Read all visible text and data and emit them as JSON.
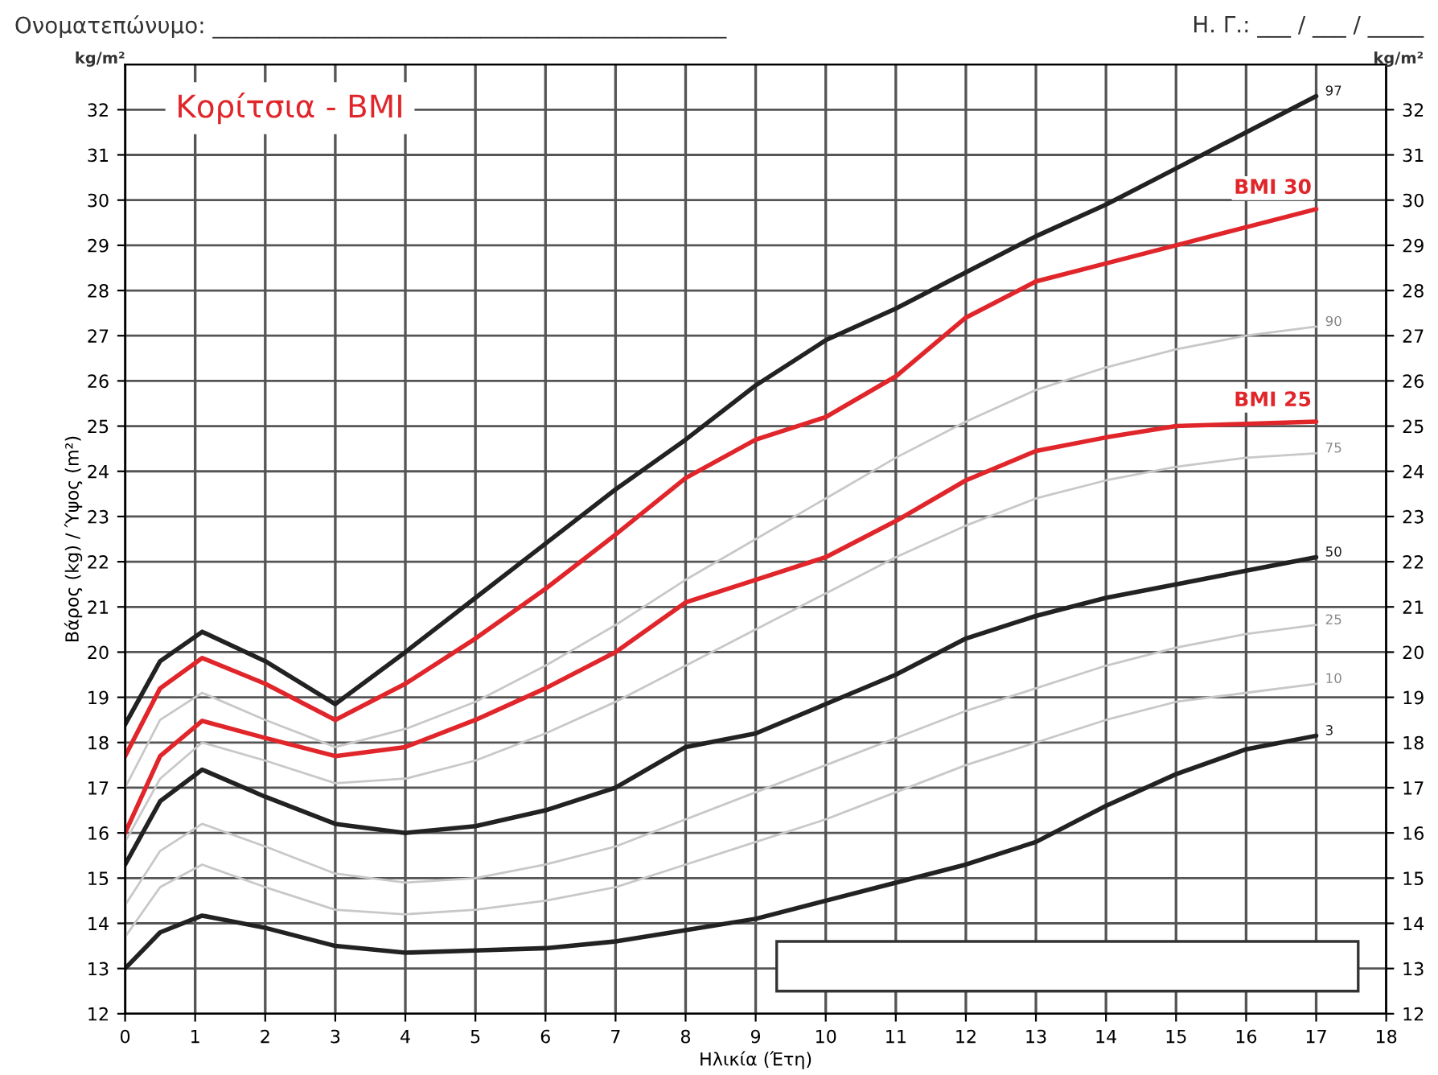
{
  "chart_data": {
    "type": "line",
    "title": "Κορίτσια - BMI",
    "xlabel": "Ηλικία (Έτη)",
    "ylabel": "Βάρος (kg) / Ύψος (m²)",
    "annotations": [
      "Ονοματεπώνυμο: ______________________________________________",
      "Η. Γ.: ___ / ___ / _____",
      "kg/m²",
      "kg/m²"
    ],
    "x": [
      0,
      0.5,
      1.1,
      2,
      3,
      4,
      5,
      6,
      7,
      8,
      9,
      10,
      11,
      12,
      13,
      14,
      15,
      16,
      17
    ],
    "series": [
      {
        "name": "97",
        "color": "#222222",
        "values": [
          18.4,
          19.8,
          20.45,
          19.8,
          18.85,
          20.0,
          21.2,
          22.4,
          23.6,
          24.7,
          25.9,
          26.9,
          27.6,
          28.4,
          29.2,
          29.9,
          30.7,
          31.5,
          32.3
        ]
      },
      {
        "name": "BMI 30",
        "color": "#e0262b",
        "values": [
          17.7,
          19.2,
          19.87,
          19.3,
          18.5,
          19.3,
          20.3,
          21.4,
          22.6,
          23.85,
          24.7,
          25.2,
          26.1,
          27.4,
          28.2,
          28.6,
          29.0,
          29.4,
          29.8
        ]
      },
      {
        "name": "90",
        "color": "#c8c8c8",
        "values": [
          17.0,
          18.5,
          19.1,
          18.5,
          17.9,
          18.3,
          18.9,
          19.7,
          20.6,
          21.6,
          22.5,
          23.4,
          24.3,
          25.1,
          25.8,
          26.3,
          26.7,
          27.0,
          27.2
        ]
      },
      {
        "name": "BMI 25",
        "color": "#e0262b",
        "values": [
          16.0,
          17.7,
          18.48,
          18.1,
          17.7,
          17.9,
          18.5,
          19.2,
          20.0,
          21.1,
          21.6,
          22.1,
          22.9,
          23.8,
          24.45,
          24.75,
          25.0,
          25.05,
          25.1
        ]
      },
      {
        "name": "75",
        "color": "#c8c8c8",
        "values": [
          15.8,
          17.2,
          18.0,
          17.6,
          17.1,
          17.2,
          17.6,
          18.2,
          18.9,
          19.7,
          20.5,
          21.3,
          22.1,
          22.8,
          23.4,
          23.8,
          24.1,
          24.3,
          24.4
        ]
      },
      {
        "name": "50",
        "color": "#222222",
        "values": [
          15.3,
          16.7,
          17.4,
          16.8,
          16.2,
          16.0,
          16.15,
          16.5,
          17.0,
          17.9,
          18.2,
          18.85,
          19.5,
          20.3,
          20.8,
          21.2,
          21.5,
          21.8,
          22.1
        ]
      },
      {
        "name": "25",
        "color": "#c8c8c8",
        "values": [
          14.4,
          15.6,
          16.2,
          15.7,
          15.1,
          14.9,
          15.0,
          15.3,
          15.7,
          16.3,
          16.9,
          17.5,
          18.1,
          18.7,
          19.2,
          19.7,
          20.1,
          20.4,
          20.6
        ]
      },
      {
        "name": "10",
        "color": "#c8c8c8",
        "values": [
          13.7,
          14.8,
          15.3,
          14.8,
          14.3,
          14.2,
          14.3,
          14.5,
          14.8,
          15.3,
          15.8,
          16.3,
          16.9,
          17.5,
          18.0,
          18.5,
          18.9,
          19.1,
          19.3
        ]
      },
      {
        "name": "3",
        "color": "#222222",
        "values": [
          13.0,
          13.8,
          14.17,
          13.9,
          13.5,
          13.35,
          13.4,
          13.45,
          13.6,
          13.85,
          14.1,
          14.5,
          14.9,
          15.3,
          15.8,
          16.6,
          17.3,
          17.85,
          18.15
        ]
      }
    ],
    "xlim": [
      0,
      18
    ],
    "xticks": [
      0,
      1,
      2,
      3,
      4,
      5,
      6,
      7,
      8,
      9,
      10,
      11,
      12,
      13,
      14,
      15,
      16,
      17,
      18
    ],
    "ylim": [
      12,
      33
    ],
    "yticks": [
      12,
      13,
      14,
      15,
      16,
      17,
      18,
      19,
      20,
      21,
      22,
      23,
      24,
      25,
      26,
      27,
      28,
      29,
      30,
      31,
      32
    ],
    "y2lim": [
      12,
      33
    ],
    "y2ticks": [
      12,
      13,
      14,
      15,
      16,
      17,
      18,
      19,
      20,
      21,
      22,
      23,
      24,
      25,
      26,
      27,
      28,
      29,
      30,
      31,
      32
    ],
    "grid": true,
    "marker": "none",
    "line_style": "solid"
  }
}
